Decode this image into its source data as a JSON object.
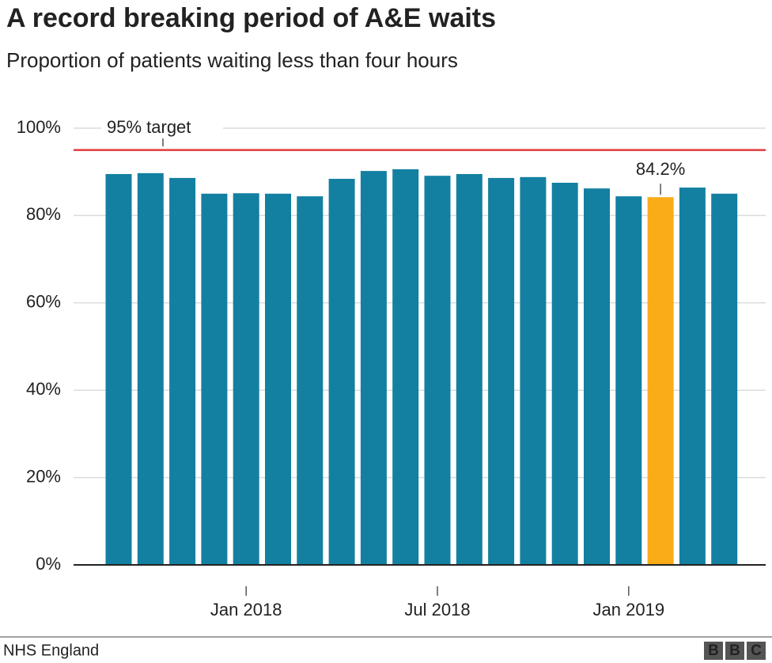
{
  "chart_data": {
    "type": "bar",
    "title": "A record breaking period of A&E waits",
    "subtitle": "Proportion of patients waiting less than four hours",
    "categories": [
      null,
      null,
      null,
      null,
      "Jan 2018",
      null,
      null,
      null,
      null,
      null,
      "Jul 2018",
      null,
      null,
      null,
      null,
      null,
      "Jan 2019",
      null,
      null,
      null
    ],
    "values": [
      89.5,
      89.7,
      88.6,
      85.0,
      85.1,
      85.0,
      84.4,
      88.4,
      90.2,
      90.6,
      89.1,
      89.5,
      88.6,
      88.8,
      87.5,
      86.2,
      84.4,
      84.2,
      86.4,
      85.0
    ],
    "value_labels": [
      null,
      null,
      null,
      null,
      null,
      null,
      null,
      null,
      null,
      null,
      null,
      null,
      null,
      null,
      null,
      null,
      null,
      "84.2%",
      null,
      null
    ],
    "colors": [
      "#1380a1",
      "#1380a1",
      "#1380a1",
      "#1380a1",
      "#1380a1",
      "#1380a1",
      "#1380a1",
      "#1380a1",
      "#1380a1",
      "#1380a1",
      "#1380a1",
      "#1380a1",
      "#1380a1",
      "#1380a1",
      "#1380a1",
      "#1380a1",
      "#1380a1",
      "#faab18",
      "#1380a1",
      "#1380a1"
    ],
    "ylim": [
      0,
      100
    ],
    "yticks": [
      {
        "value": 0,
        "label": "0%"
      },
      {
        "value": 20,
        "label": "20%"
      },
      {
        "value": 40,
        "label": "40%"
      },
      {
        "value": 60,
        "label": "60%"
      },
      {
        "value": 80,
        "label": "80%"
      },
      {
        "value": 100,
        "label": "100%"
      }
    ],
    "grid": true,
    "target": {
      "value": 95,
      "label": "95% target",
      "color": "#e03a3e"
    },
    "source": "NHS England",
    "logo": [
      "B",
      "B",
      "C"
    ]
  }
}
